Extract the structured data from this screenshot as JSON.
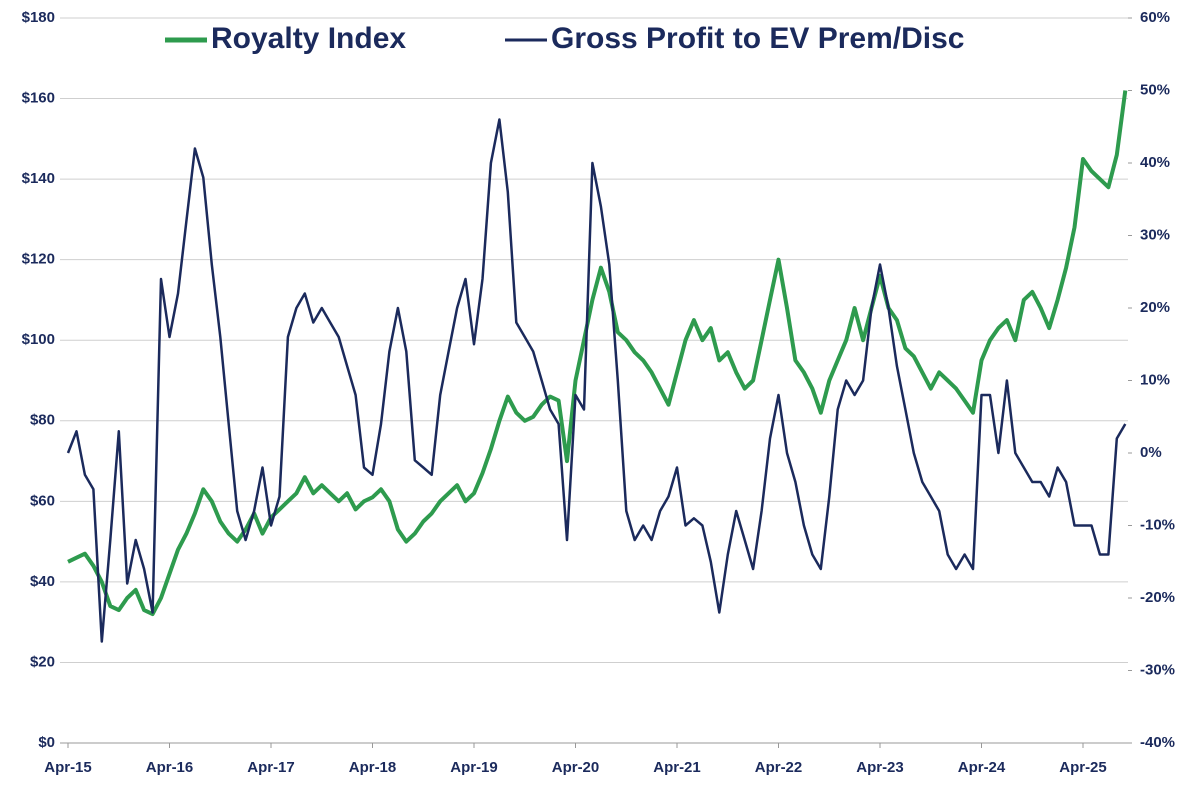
{
  "chart_data": {
    "type": "line",
    "categories": [
      "Apr-15",
      null,
      null,
      null,
      null,
      null,
      null,
      null,
      null,
      null,
      null,
      null,
      "Apr-16",
      null,
      null,
      null,
      null,
      null,
      null,
      null,
      null,
      null,
      null,
      null,
      "Apr-17",
      null,
      null,
      null,
      null,
      null,
      null,
      null,
      null,
      null,
      null,
      null,
      "Apr-18",
      null,
      null,
      null,
      null,
      null,
      null,
      null,
      null,
      null,
      null,
      null,
      "Apr-19",
      null,
      null,
      null,
      null,
      null,
      null,
      null,
      null,
      null,
      null,
      null,
      "Apr-20",
      null,
      null,
      null,
      null,
      null,
      null,
      null,
      null,
      null,
      null,
      null,
      "Apr-21",
      null,
      null,
      null,
      null,
      null,
      null,
      null,
      null,
      null,
      null,
      null,
      "Apr-22",
      null,
      null,
      null,
      null,
      null,
      null,
      null,
      null,
      null,
      null,
      null,
      "Apr-23",
      null,
      null,
      null,
      null,
      null,
      null,
      null,
      null,
      null,
      null,
      null,
      "Apr-24",
      null,
      null,
      null,
      null,
      null,
      null,
      null,
      null,
      null,
      null,
      null,
      "Apr-25",
      null,
      null,
      null,
      null,
      null
    ],
    "series": [
      {
        "name": "Royalty Index",
        "color": "#2e9b4e",
        "values": [
          45,
          46,
          47,
          44,
          40,
          34,
          33,
          36,
          38,
          33,
          32,
          36,
          42,
          48,
          52,
          57,
          63,
          60,
          55,
          52,
          50,
          53,
          57,
          52,
          56,
          58,
          60,
          62,
          66,
          62,
          64,
          62,
          60,
          62,
          58,
          60,
          61,
          63,
          60,
          53,
          50,
          52,
          55,
          57,
          60,
          62,
          64,
          60,
          62,
          67,
          73,
          80,
          86,
          82,
          80,
          81,
          84,
          86,
          85,
          70,
          90,
          100,
          110,
          118,
          112,
          102,
          100,
          97,
          95,
          92,
          88,
          84,
          92,
          100,
          105,
          100,
          103,
          95,
          97,
          92,
          88,
          90,
          100,
          110,
          120,
          108,
          95,
          92,
          88,
          82,
          90,
          95,
          100,
          108,
          100,
          108,
          116,
          108,
          105,
          98,
          96,
          92,
          88,
          92,
          90,
          88,
          85,
          82,
          95,
          100,
          103,
          105,
          100,
          110,
          112,
          108,
          103,
          110,
          118,
          128,
          145,
          142,
          140,
          138,
          146,
          162
        ]
      },
      {
        "name": "Gross Profit to EV Prem/Disc",
        "color": "#1b2a5c",
        "axis": "y2",
        "values": [
          0,
          3,
          -3,
          -5,
          -26,
          -12,
          3,
          -18,
          -12,
          -16,
          -22,
          24,
          16,
          22,
          32,
          42,
          38,
          26,
          16,
          4,
          -8,
          -12,
          -8,
          -2,
          -10,
          -6,
          16,
          20,
          22,
          18,
          20,
          18,
          16,
          12,
          8,
          -2,
          -3,
          4,
          14,
          20,
          14,
          -1,
          -2,
          -3,
          8,
          14,
          20,
          24,
          15,
          24,
          40,
          46,
          36,
          18,
          16,
          14,
          10,
          6,
          4,
          -12,
          8,
          6,
          40,
          34,
          26,
          10,
          -8,
          -12,
          -10,
          -12,
          -8,
          -6,
          -2,
          -10,
          -9,
          -10,
          -15,
          -22,
          -14,
          -8,
          -12,
          -16,
          -8,
          2,
          8,
          0,
          -4,
          -10,
          -14,
          -16,
          -6,
          6,
          10,
          8,
          10,
          20,
          26,
          20,
          12,
          6,
          0,
          -4,
          -6,
          -8,
          -14,
          -16,
          -14,
          -16,
          8,
          8,
          0,
          10,
          0,
          -2,
          -4,
          -4,
          -6,
          -2,
          -4,
          -10,
          -10,
          -10,
          -14,
          -14,
          2,
          4
        ]
      }
    ],
    "ylim": [
      0,
      180
    ],
    "yticks": [
      {
        "value": 0,
        "label": "$0"
      },
      {
        "value": 20,
        "label": "$20"
      },
      {
        "value": 40,
        "label": "$40"
      },
      {
        "value": 60,
        "label": "$60"
      },
      {
        "value": 80,
        "label": "$80"
      },
      {
        "value": 100,
        "label": "$100"
      },
      {
        "value": 120,
        "label": "$120"
      },
      {
        "value": 140,
        "label": "$140"
      },
      {
        "value": 160,
        "label": "$160"
      },
      {
        "value": 180,
        "label": "$180"
      }
    ],
    "y2lim": [
      -40,
      60
    ],
    "y2ticks": [
      {
        "value": -40,
        "label": "-40%"
      },
      {
        "value": -30,
        "label": "-30%"
      },
      {
        "value": -20,
        "label": "-20%"
      },
      {
        "value": -10,
        "label": "-10%"
      },
      {
        "value": 0,
        "label": "0%"
      },
      {
        "value": 10,
        "label": "10%"
      },
      {
        "value": 20,
        "label": "20%"
      },
      {
        "value": 30,
        "label": "30%"
      },
      {
        "value": 40,
        "label": "40%"
      },
      {
        "value": 50,
        "label": "50%"
      },
      {
        "value": 60,
        "label": "60%"
      }
    ],
    "grid": true,
    "legend": "top"
  }
}
